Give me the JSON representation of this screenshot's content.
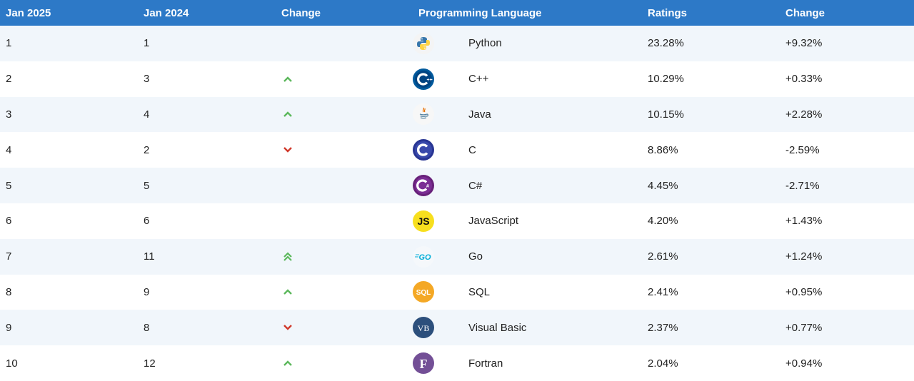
{
  "header": {
    "col_current": "Jan 2025",
    "col_previous": "Jan 2024",
    "col_change": "Change",
    "col_language": "Programming Language",
    "col_ratings": "Ratings",
    "col_change_pct": "Change"
  },
  "colors": {
    "header_bg": "#2d79c7",
    "row_alt_bg": "#f1f6fb",
    "arrow_up": "#5cb85c",
    "arrow_down": "#d0392b"
  },
  "rows": [
    {
      "rank": "1",
      "prev": "1",
      "trend": "none",
      "icon": "python-logo-icon",
      "language": "Python",
      "rating": "23.28%",
      "change": "+9.32%"
    },
    {
      "rank": "2",
      "prev": "3",
      "trend": "up",
      "icon": "cpp-logo-icon",
      "language": "C++",
      "rating": "10.29%",
      "change": "+0.33%"
    },
    {
      "rank": "3",
      "prev": "4",
      "trend": "up",
      "icon": "java-logo-icon",
      "language": "Java",
      "rating": "10.15%",
      "change": "+2.28%"
    },
    {
      "rank": "4",
      "prev": "2",
      "trend": "down",
      "icon": "c-logo-icon",
      "language": "C",
      "rating": "8.86%",
      "change": "-2.59%"
    },
    {
      "rank": "5",
      "prev": "5",
      "trend": "none",
      "icon": "csharp-logo-icon",
      "language": "C#",
      "rating": "4.45%",
      "change": "-2.71%"
    },
    {
      "rank": "6",
      "prev": "6",
      "trend": "none",
      "icon": "javascript-logo-icon",
      "language": "JavaScript",
      "rating": "4.20%",
      "change": "+1.43%"
    },
    {
      "rank": "7",
      "prev": "11",
      "trend": "up2",
      "icon": "go-logo-icon",
      "language": "Go",
      "rating": "2.61%",
      "change": "+1.24%"
    },
    {
      "rank": "8",
      "prev": "9",
      "trend": "up",
      "icon": "sql-logo-icon",
      "language": "SQL",
      "rating": "2.41%",
      "change": "+0.95%"
    },
    {
      "rank": "9",
      "prev": "8",
      "trend": "down",
      "icon": "visual-basic-logo-icon",
      "language": "Visual Basic",
      "rating": "2.37%",
      "change": "+0.77%"
    },
    {
      "rank": "10",
      "prev": "12",
      "trend": "up",
      "icon": "fortran-logo-icon",
      "language": "Fortran",
      "rating": "2.04%",
      "change": "+0.94%"
    }
  ],
  "logos": {
    "javascript_text": "JS",
    "go_text": "GO",
    "sql_text": "SQL",
    "visual_basic_text": "VB",
    "fortran_text": "F"
  }
}
